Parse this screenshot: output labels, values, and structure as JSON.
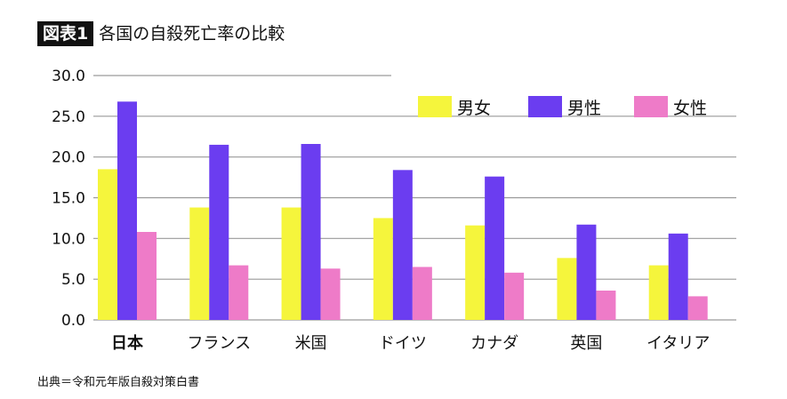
{
  "title": {
    "tag": "図表1",
    "text": "各国の自殺死亡率の比較"
  },
  "source": "出典＝令和元年版自殺対策白書",
  "colors": {
    "series_both": "#f5f53c",
    "series_male": "#6b3df0",
    "series_female": "#ee7bc8",
    "grid": "#9a9a9a",
    "axis_text": "#111111"
  },
  "chart_data": {
    "type": "bar",
    "title": "各国の自殺死亡率の比較",
    "xlabel": "",
    "ylabel": "",
    "categories": [
      "日本",
      "フランス",
      "米国",
      "ドイツ",
      "カナダ",
      "英国",
      "イタリア"
    ],
    "series": [
      {
        "name": "男女",
        "color": "#f5f53c",
        "values": [
          18.5,
          13.8,
          13.8,
          12.5,
          11.6,
          7.6,
          6.7
        ]
      },
      {
        "name": "男性",
        "color": "#6b3df0",
        "values": [
          26.8,
          21.5,
          21.6,
          18.4,
          17.6,
          11.7,
          10.6
        ]
      },
      {
        "name": "女性",
        "color": "#ee7bc8",
        "values": [
          10.8,
          6.7,
          6.3,
          6.5,
          5.8,
          3.6,
          2.9
        ]
      }
    ],
    "ylim": [
      0,
      30
    ],
    "yticks": [
      "0.0",
      "5.0",
      "10.0",
      "15.0",
      "20.0",
      "25.0",
      "30.0"
    ],
    "grid": true,
    "legend_position": "top-right",
    "highlighted_category": "日本"
  }
}
